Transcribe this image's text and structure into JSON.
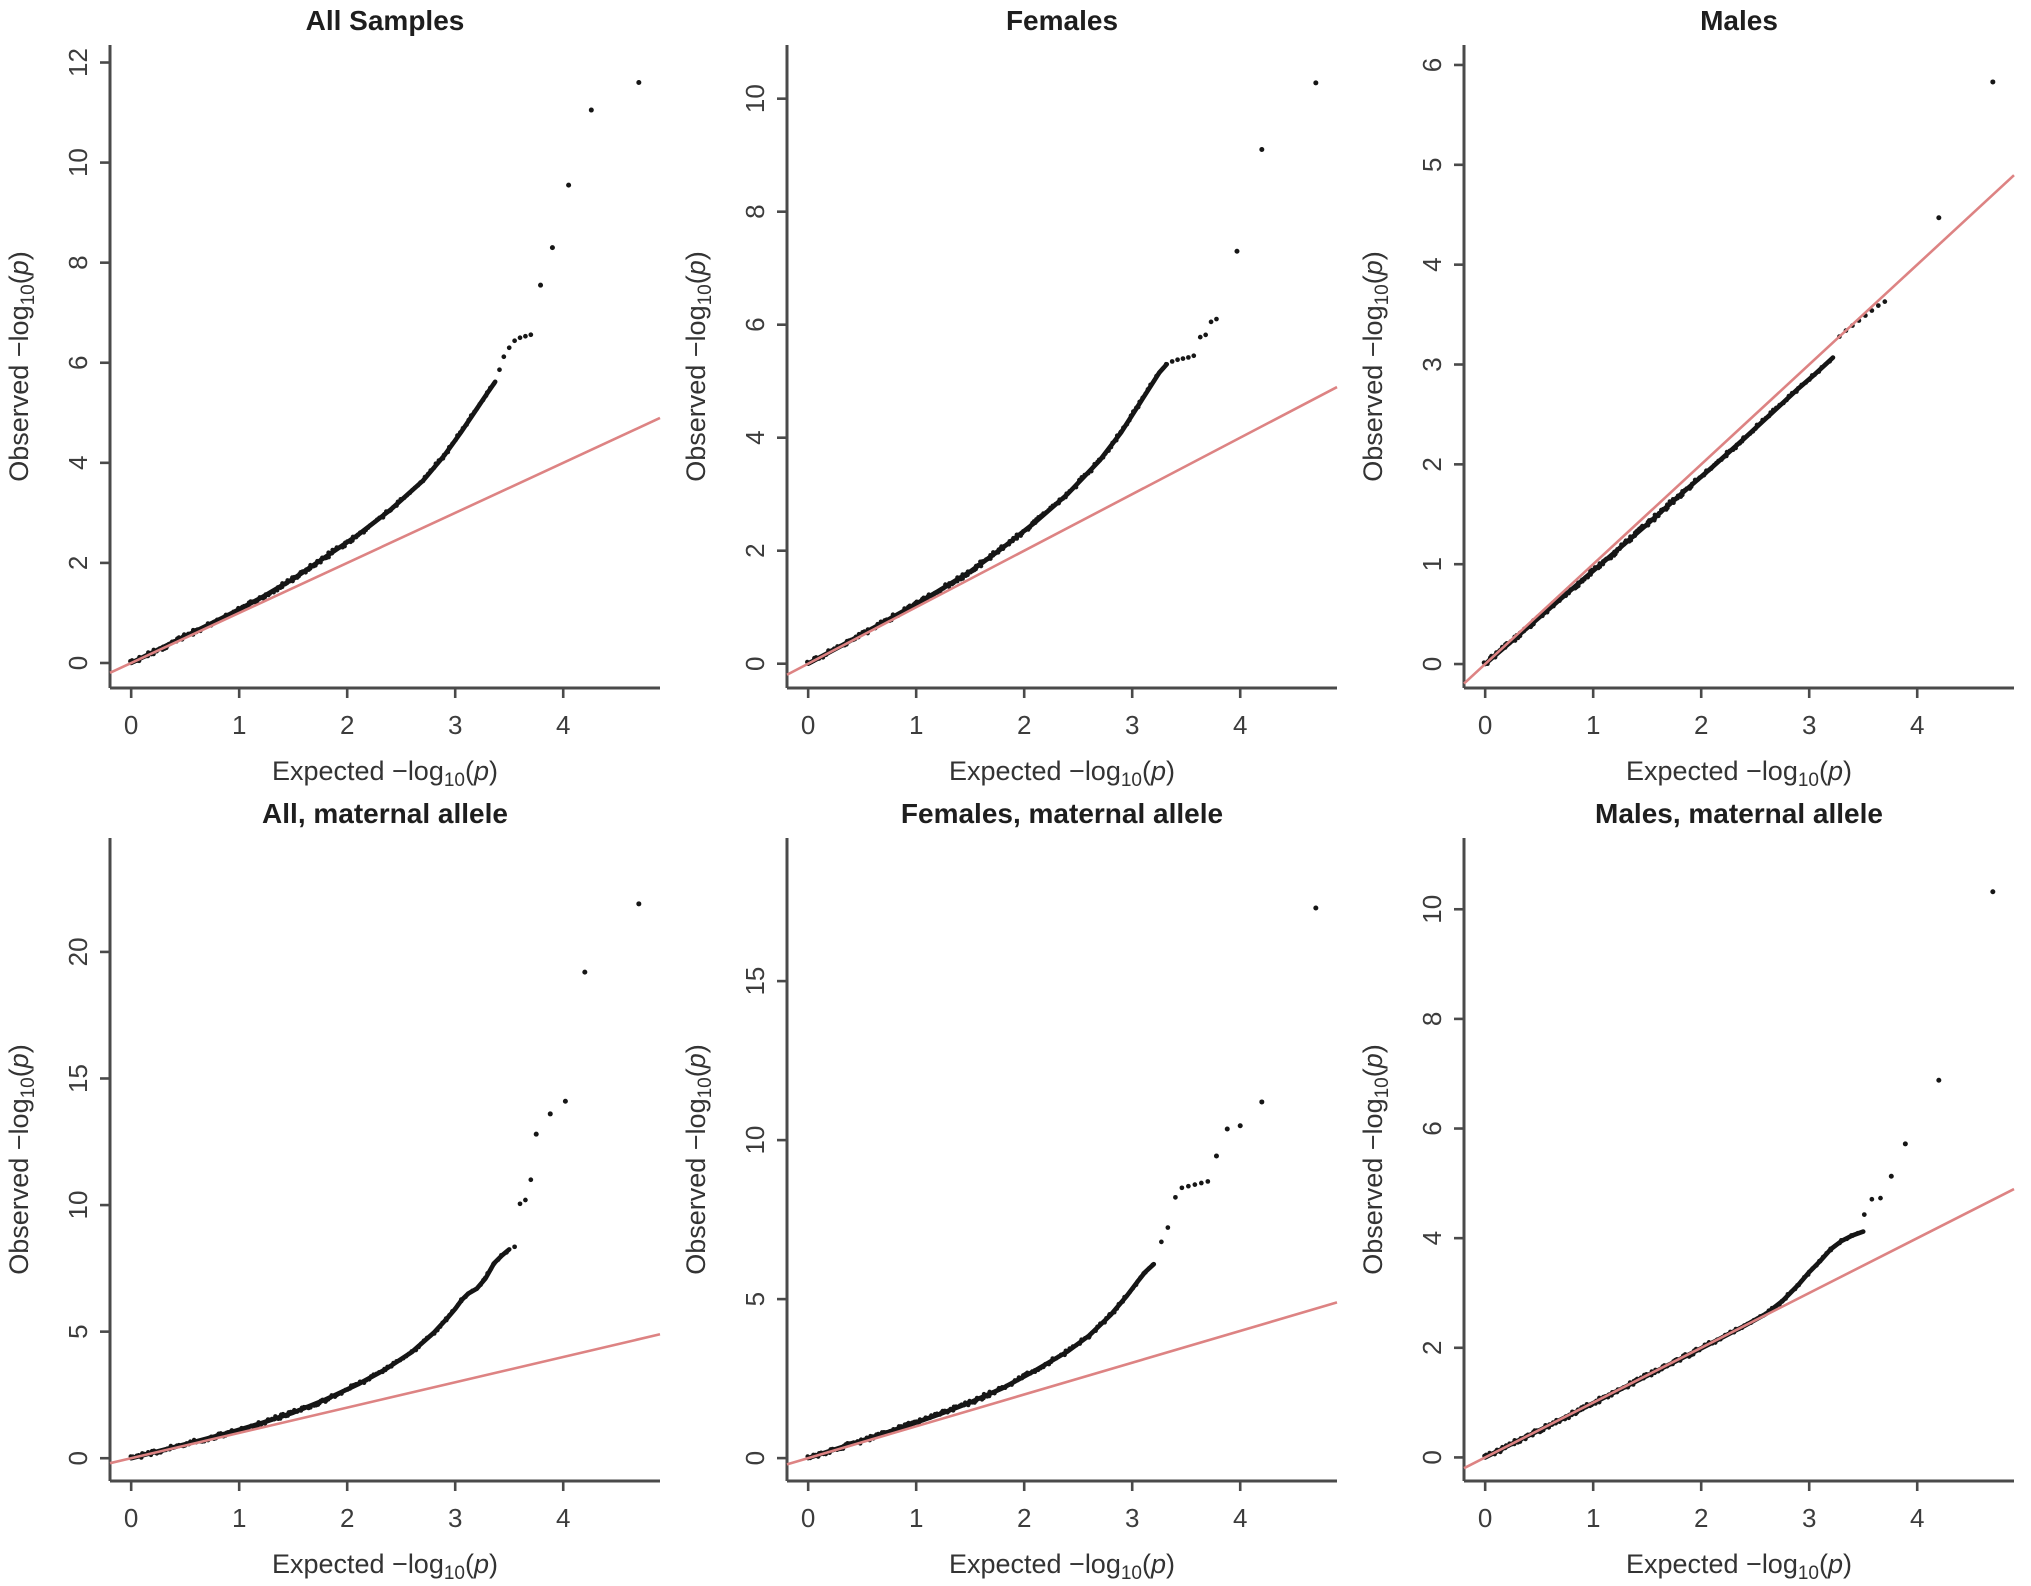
{
  "figure": {
    "background": "#ffffff"
  },
  "style": {
    "point_color": "#161616",
    "band_color": "#141414",
    "identity_line_color": "#dd8383",
    "axis_color": "#4a4a4a",
    "tick_text_color": "#3c3c3c",
    "label_text_color": "#333333",
    "title_color": "#1e1e1e"
  },
  "axes": {
    "x_label": "Expected −log10(p)",
    "y_label": "Observed −log10(p)",
    "x_ticks": [
      0,
      1,
      2,
      3,
      4
    ],
    "x_range": [
      -0.196,
      4.896
    ]
  },
  "chart_data": [
    {
      "type": "scatter",
      "title": "All Samples",
      "xlabel": "Expected −log10(p)",
      "ylabel": "Observed −log10(p)",
      "x_range": [
        -0.196,
        4.896
      ],
      "y_range": [
        -0.5,
        12.35
      ],
      "y_ticks": [
        0,
        2,
        4,
        6,
        8,
        10,
        12
      ],
      "identity_line": true,
      "band": [
        [
          0,
          0
        ],
        [
          0.3,
          0.32
        ],
        [
          0.6,
          0.64
        ],
        [
          0.9,
          0.96
        ],
        [
          1.2,
          1.3
        ],
        [
          1.5,
          1.68
        ],
        [
          1.8,
          2.12
        ],
        [
          2.1,
          2.56
        ],
        [
          2.4,
          3.06
        ],
        [
          2.7,
          3.64
        ],
        [
          2.9,
          4.15
        ],
        [
          3.05,
          4.6
        ],
        [
          3.2,
          5.08
        ],
        [
          3.3,
          5.4
        ],
        [
          3.37,
          5.62
        ]
      ],
      "tail": [
        [
          3.41,
          5.86
        ],
        [
          3.45,
          6.12
        ],
        [
          3.5,
          6.3
        ],
        [
          3.55,
          6.44
        ],
        [
          3.6,
          6.5
        ],
        [
          3.65,
          6.53
        ],
        [
          3.7,
          6.56
        ]
      ],
      "outliers": [
        [
          3.79,
          7.55
        ],
        [
          3.9,
          8.3
        ],
        [
          4.05,
          9.55
        ],
        [
          4.26,
          11.05
        ],
        [
          4.7,
          11.6
        ]
      ]
    },
    {
      "type": "scatter",
      "title": "Females",
      "xlabel": "Expected −log10(p)",
      "ylabel": "Observed −log10(p)",
      "x_range": [
        -0.196,
        4.896
      ],
      "y_range": [
        -0.43,
        10.95
      ],
      "y_ticks": [
        0,
        2,
        4,
        6,
        8,
        10
      ],
      "identity_line": true,
      "band": [
        [
          0,
          0
        ],
        [
          0.3,
          0.31
        ],
        [
          0.6,
          0.63
        ],
        [
          0.9,
          0.95
        ],
        [
          1.2,
          1.28
        ],
        [
          1.5,
          1.63
        ],
        [
          1.8,
          2.05
        ],
        [
          2.1,
          2.5
        ],
        [
          2.4,
          3.0
        ],
        [
          2.7,
          3.6
        ],
        [
          2.9,
          4.1
        ],
        [
          3.05,
          4.55
        ],
        [
          3.15,
          4.85
        ],
        [
          3.25,
          5.15
        ],
        [
          3.32,
          5.3
        ]
      ],
      "tail": [
        [
          3.37,
          5.35
        ],
        [
          3.42,
          5.38
        ],
        [
          3.47,
          5.4
        ],
        [
          3.52,
          5.42
        ],
        [
          3.57,
          5.45
        ],
        [
          3.63,
          5.78
        ],
        [
          3.68,
          5.82
        ],
        [
          3.73,
          6.05
        ],
        [
          3.78,
          6.1
        ]
      ],
      "outliers": [
        [
          3.97,
          7.3
        ],
        [
          4.2,
          9.1
        ],
        [
          4.7,
          10.28
        ]
      ]
    },
    {
      "type": "scatter",
      "title": "Males",
      "xlabel": "Expected −log10(p)",
      "ylabel": "Observed −log10(p)",
      "x_range": [
        -0.196,
        4.896
      ],
      "y_range": [
        -0.24,
        6.2
      ],
      "y_ticks": [
        0,
        1,
        2,
        3,
        4,
        5,
        6
      ],
      "identity_line": true,
      "band": [
        [
          0,
          0
        ],
        [
          0.3,
          0.28
        ],
        [
          0.6,
          0.56
        ],
        [
          0.9,
          0.84
        ],
        [
          1.2,
          1.12
        ],
        [
          1.5,
          1.4
        ],
        [
          1.8,
          1.69
        ],
        [
          2.1,
          1.97
        ],
        [
          2.4,
          2.26
        ],
        [
          2.7,
          2.56
        ],
        [
          2.9,
          2.76
        ],
        [
          3.05,
          2.9
        ],
        [
          3.15,
          3.0
        ],
        [
          3.22,
          3.07
        ]
      ],
      "tail": [
        [
          3.28,
          3.28
        ],
        [
          3.34,
          3.34
        ],
        [
          3.4,
          3.39
        ],
        [
          3.46,
          3.44
        ],
        [
          3.52,
          3.49
        ],
        [
          3.58,
          3.54
        ],
        [
          3.64,
          3.59
        ],
        [
          3.7,
          3.63
        ]
      ],
      "outliers": [
        [
          4.2,
          4.47
        ],
        [
          4.7,
          5.83
        ]
      ]
    },
    {
      "type": "scatter",
      "title": "All, maternal allele",
      "xlabel": "Expected −log10(p)",
      "ylabel": "Observed −log10(p)",
      "x_range": [
        -0.196,
        4.896
      ],
      "y_range": [
        -0.9,
        24.5
      ],
      "y_ticks": [
        0,
        5,
        10,
        15,
        20
      ],
      "identity_line": true,
      "band": [
        [
          0,
          0
        ],
        [
          0.3,
          0.33
        ],
        [
          0.6,
          0.66
        ],
        [
          0.9,
          1.0
        ],
        [
          1.2,
          1.38
        ],
        [
          1.5,
          1.8
        ],
        [
          1.8,
          2.32
        ],
        [
          2.1,
          2.92
        ],
        [
          2.35,
          3.5
        ],
        [
          2.6,
          4.2
        ],
        [
          2.8,
          4.95
        ],
        [
          2.92,
          5.5
        ],
        [
          3.0,
          5.9
        ],
        [
          3.06,
          6.25
        ],
        [
          3.12,
          6.5
        ],
        [
          3.2,
          6.7
        ],
        [
          3.28,
          7.1
        ],
        [
          3.36,
          7.7
        ],
        [
          3.43,
          8.0
        ],
        [
          3.5,
          8.25
        ]
      ],
      "tail": [
        [
          3.55,
          8.35
        ],
        [
          3.6,
          10.05
        ],
        [
          3.65,
          10.2
        ],
        [
          3.7,
          11.0
        ]
      ],
      "outliers": [
        [
          3.75,
          12.8
        ],
        [
          3.88,
          13.6
        ],
        [
          4.02,
          14.1
        ],
        [
          4.2,
          19.2
        ],
        [
          4.7,
          21.9
        ]
      ]
    },
    {
      "type": "scatter",
      "title": "Females, maternal allele",
      "xlabel": "Expected −log10(p)",
      "ylabel": "Observed −log10(p)",
      "x_range": [
        -0.196,
        4.896
      ],
      "y_range": [
        -0.72,
        19.5
      ],
      "y_ticks": [
        0,
        5,
        10,
        15
      ],
      "identity_line": true,
      "band": [
        [
          0,
          0
        ],
        [
          0.3,
          0.33
        ],
        [
          0.6,
          0.66
        ],
        [
          0.9,
          1.0
        ],
        [
          1.2,
          1.36
        ],
        [
          1.5,
          1.75
        ],
        [
          1.8,
          2.2
        ],
        [
          2.1,
          2.75
        ],
        [
          2.4,
          3.35
        ],
        [
          2.6,
          3.85
        ],
        [
          2.8,
          4.5
        ],
        [
          2.95,
          5.1
        ],
        [
          3.05,
          5.55
        ],
        [
          3.12,
          5.85
        ],
        [
          3.2,
          6.1
        ]
      ],
      "tail": [
        [
          3.27,
          6.8
        ],
        [
          3.33,
          7.25
        ],
        [
          3.4,
          8.2
        ],
        [
          3.46,
          8.5
        ],
        [
          3.52,
          8.55
        ],
        [
          3.58,
          8.6
        ],
        [
          3.64,
          8.65
        ],
        [
          3.7,
          8.7
        ]
      ],
      "outliers": [
        [
          3.78,
          9.5
        ],
        [
          3.88,
          10.35
        ],
        [
          4.0,
          10.45
        ],
        [
          4.2,
          11.2
        ],
        [
          4.7,
          17.3
        ]
      ]
    },
    {
      "type": "scatter",
      "title": "Males, maternal allele",
      "xlabel": "Expected −log10(p)",
      "ylabel": "Observed −log10(p)",
      "x_range": [
        -0.196,
        4.896
      ],
      "y_range": [
        -0.43,
        11.3
      ],
      "y_ticks": [
        0,
        2,
        4,
        6,
        8,
        10
      ],
      "identity_line": true,
      "band": [
        [
          0,
          0
        ],
        [
          0.3,
          0.3
        ],
        [
          0.6,
          0.59
        ],
        [
          0.9,
          0.89
        ],
        [
          1.2,
          1.19
        ],
        [
          1.5,
          1.49
        ],
        [
          1.8,
          1.79
        ],
        [
          2.1,
          2.09
        ],
        [
          2.4,
          2.4
        ],
        [
          2.6,
          2.62
        ],
        [
          2.75,
          2.85
        ],
        [
          2.9,
          3.15
        ],
        [
          3.0,
          3.38
        ],
        [
          3.1,
          3.58
        ],
        [
          3.2,
          3.8
        ],
        [
          3.3,
          3.95
        ],
        [
          3.4,
          4.05
        ],
        [
          3.5,
          4.12
        ]
      ],
      "tail": [
        [
          3.51,
          4.43
        ],
        [
          3.58,
          4.71
        ],
        [
          3.66,
          4.73
        ]
      ],
      "outliers": [
        [
          3.76,
          5.13
        ],
        [
          3.89,
          5.72
        ],
        [
          4.2,
          6.88
        ],
        [
          4.7,
          10.32
        ]
      ]
    }
  ]
}
